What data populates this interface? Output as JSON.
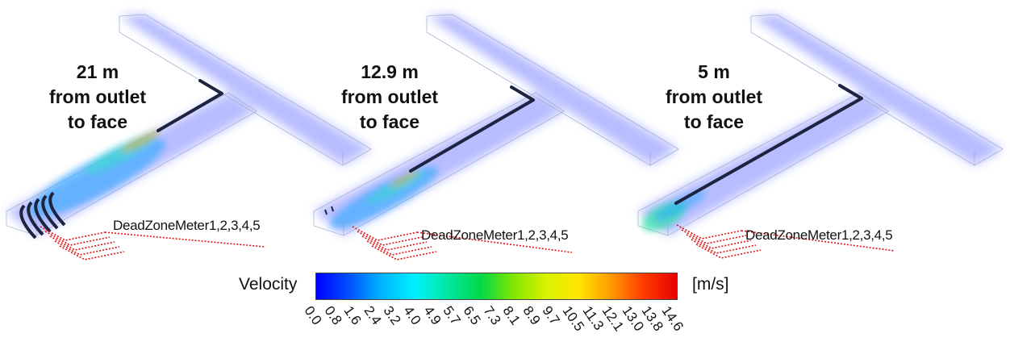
{
  "panels": [
    {
      "title_lines": [
        "21 m",
        "from outlet",
        "to face"
      ],
      "meter_label": "DeadZoneMeter1,2,3,4,5"
    },
    {
      "title_lines": [
        "12.9 m",
        "from outlet",
        "to face"
      ],
      "meter_label": "DeadZoneMeter1,2,3,4,5"
    },
    {
      "title_lines": [
        "5 m",
        "from outlet",
        "to face"
      ],
      "meter_label": "DeadZoneMeter1,2,3,4,5"
    }
  ],
  "colorbar": {
    "label": "Velocity",
    "unit": "[m/s]",
    "ticks": [
      "0.0",
      "0.8",
      "1.6",
      "2.4",
      "3.2",
      "4.0",
      "4.9",
      "5.7",
      "6.5",
      "7.3",
      "8.1",
      "8.9",
      "9.7",
      "10.5",
      "11.3",
      "12.1",
      "13.0",
      "13.8",
      "14.6"
    ],
    "colors": [
      "#0000ff",
      "#0050ff",
      "#00b4ff",
      "#00f0ff",
      "#00e8a0",
      "#00d84a",
      "#7ee600",
      "#d8f200",
      "#ffe600",
      "#ff9a00",
      "#ff3a00",
      "#e80000"
    ]
  }
}
